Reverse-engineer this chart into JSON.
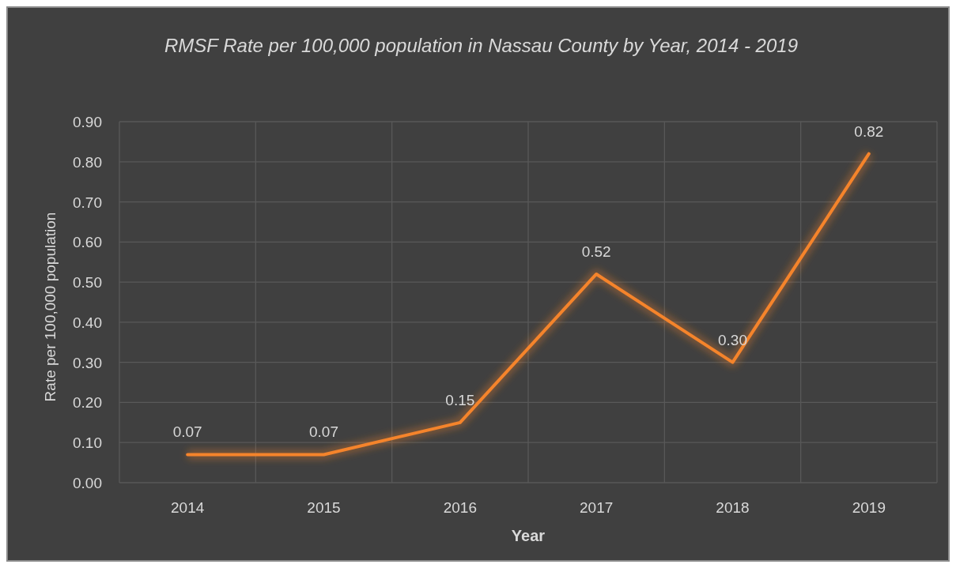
{
  "chart_data": {
    "type": "line",
    "title": "RMSF Rate per 100,000  population in Nassau County by Year, 2014 - 2019",
    "xlabel": "Year",
    "ylabel": "Rate per 100,000 population",
    "categories": [
      "2014",
      "2015",
      "2016",
      "2017",
      "2018",
      "2019"
    ],
    "series": [
      {
        "color": "#f5842b",
        "values": [
          0.07,
          0.07,
          0.15,
          0.52,
          0.3,
          0.82
        ],
        "value_labels": [
          "0.07",
          "0.07",
          "0.15",
          "0.52",
          "0.30",
          "0.82"
        ]
      }
    ],
    "ylim": [
      0,
      0.9
    ],
    "yticks": [
      {
        "value": 0,
        "label": "0.00"
      },
      {
        "value": 0.1,
        "label": "0.10"
      },
      {
        "value": 0.2,
        "label": "0.20"
      },
      {
        "value": 0.3,
        "label": "0.30"
      },
      {
        "value": 0.4,
        "label": "0.40"
      },
      {
        "value": 0.5,
        "label": "0.50"
      },
      {
        "value": 0.6,
        "label": "0.60"
      },
      {
        "value": 0.7,
        "label": "0.70"
      },
      {
        "value": 0.8,
        "label": "0.80"
      },
      {
        "value": 0.9,
        "label": "0.90"
      }
    ],
    "grid": true,
    "marker": "none",
    "line_style": "solid"
  }
}
